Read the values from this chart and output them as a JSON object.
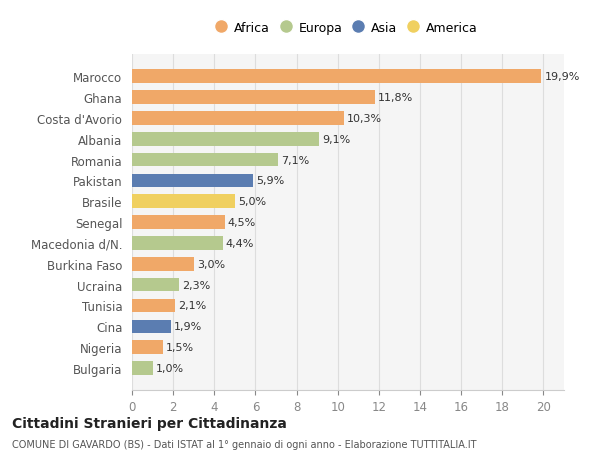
{
  "countries": [
    "Marocco",
    "Ghana",
    "Costa d'Avorio",
    "Albania",
    "Romania",
    "Pakistan",
    "Brasile",
    "Senegal",
    "Macedonia d/N.",
    "Burkina Faso",
    "Ucraina",
    "Tunisia",
    "Cina",
    "Nigeria",
    "Bulgaria"
  ],
  "values": [
    19.9,
    11.8,
    10.3,
    9.1,
    7.1,
    5.9,
    5.0,
    4.5,
    4.4,
    3.0,
    2.3,
    2.1,
    1.9,
    1.5,
    1.0
  ],
  "labels": [
    "19,9%",
    "11,8%",
    "10,3%",
    "9,1%",
    "7,1%",
    "5,9%",
    "5,0%",
    "4,5%",
    "4,4%",
    "3,0%",
    "2,3%",
    "2,1%",
    "1,9%",
    "1,5%",
    "1,0%"
  ],
  "continents": [
    "Africa",
    "Africa",
    "Africa",
    "Europa",
    "Europa",
    "Asia",
    "America",
    "Africa",
    "Europa",
    "Africa",
    "Europa",
    "Africa",
    "Asia",
    "Africa",
    "Europa"
  ],
  "colors": {
    "Africa": "#F0A868",
    "Europa": "#B5C98E",
    "Asia": "#5B7DB1",
    "America": "#F0D060"
  },
  "legend_order": [
    "Africa",
    "Europa",
    "Asia",
    "America"
  ],
  "title": "Cittadini Stranieri per Cittadinanza",
  "subtitle": "COMUNE DI GAVARDO (BS) - Dati ISTAT al 1° gennaio di ogni anno - Elaborazione TUTTITALIA.IT",
  "xlim": [
    0,
    21
  ],
  "xticks": [
    0,
    2,
    4,
    6,
    8,
    10,
    12,
    14,
    16,
    18,
    20
  ],
  "bg_color": "#ffffff",
  "plot_bg_color": "#f5f5f5"
}
